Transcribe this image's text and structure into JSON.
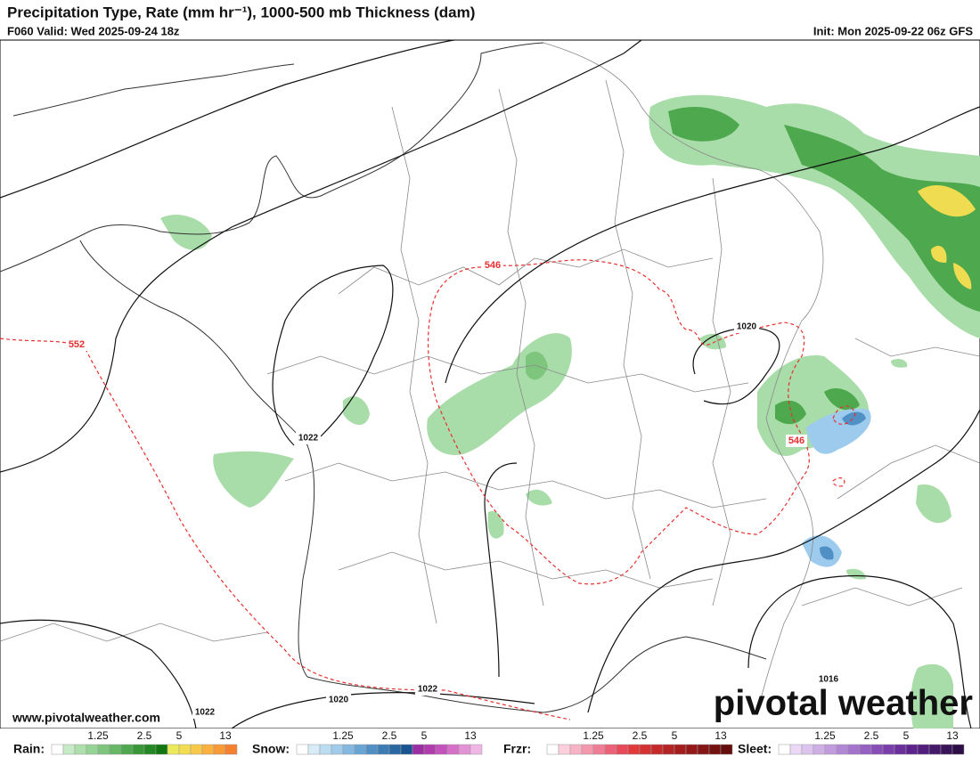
{
  "header": {
    "title": "Precipitation Type, Rate (mm hr⁻¹), 1000-500 mb Thickness (dam)",
    "valid": "F060 Valid: Wed 2025-09-24 18z",
    "init": "Init: Mon 2025-09-22 06z GFS"
  },
  "map": {
    "isobar_labels": [
      "1020",
      "1022",
      "1022",
      "1020",
      "1022",
      "1016"
    ],
    "thickness_labels": [
      "546",
      "552",
      "546"
    ]
  },
  "footer": {
    "url": "www.pivotalweather.com",
    "brand": "pivotal weather"
  },
  "legend": [
    {
      "label": "Rain:",
      "ticks": [
        "1.25",
        "2.5",
        "5",
        "13"
      ],
      "colors": [
        "#ffffff",
        "#c6ebc6",
        "#aee0ae",
        "#96d496",
        "#7ec67e",
        "#66b866",
        "#4ea84e",
        "#389838",
        "#248824",
        "#117711",
        "#eaea5a",
        "#f2dc50",
        "#f8c848",
        "#fbb040",
        "#f89a38",
        "#f58030"
      ]
    },
    {
      "label": "Snow:",
      "ticks": [
        "1.25",
        "2.5",
        "5",
        "13"
      ],
      "colors": [
        "#ffffff",
        "#d8ecf8",
        "#bcdcf2",
        "#a0cbea",
        "#84b8e0",
        "#68a4d4",
        "#5090c4",
        "#3c7cb4",
        "#2a68a2",
        "#1a5490",
        "#9a2ea2",
        "#b03cae",
        "#c452bc",
        "#d670c8",
        "#e492d6",
        "#f0b6e6"
      ]
    },
    {
      "label": "Frzr:",
      "ticks": [
        "1.25",
        "2.5",
        "5",
        "13"
      ],
      "colors": [
        "#ffffff",
        "#fbd0dc",
        "#f8b4c6",
        "#f498ae",
        "#f07c96",
        "#ec6078",
        "#e84858",
        "#e23a3a",
        "#d43232",
        "#c42a2a",
        "#b42424",
        "#a41e1e",
        "#941a1a",
        "#841616",
        "#741212",
        "#640e0e"
      ]
    },
    {
      "label": "Sleet:",
      "ticks": [
        "1.25",
        "2.5",
        "5",
        "13"
      ],
      "colors": [
        "#ffffff",
        "#ead8f4",
        "#dcc4ee",
        "#ceb0e6",
        "#c09cde",
        "#b288d6",
        "#a474cc",
        "#9660c2",
        "#884eb6",
        "#7a3eaa",
        "#6c309c",
        "#5e248e",
        "#52207c",
        "#461a6a",
        "#3a1458",
        "#2e0e46"
      ]
    }
  ]
}
